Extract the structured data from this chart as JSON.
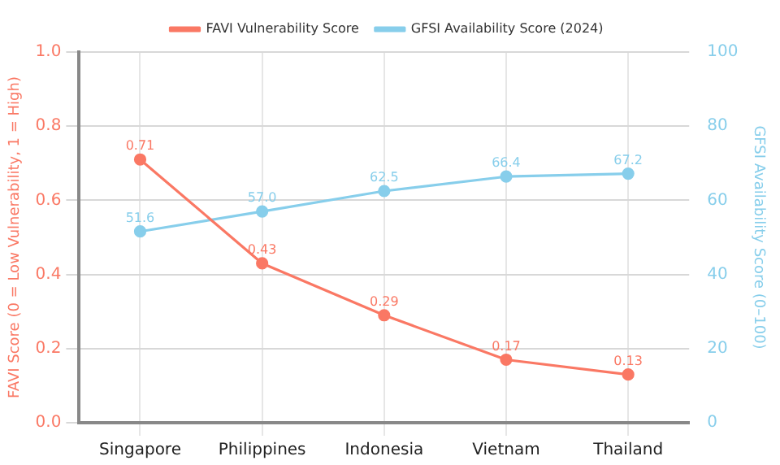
{
  "chart_data": {
    "type": "line",
    "categories": [
      "Singapore",
      "Philippines",
      "Indonesia",
      "Vietnam",
      "Thailand"
    ],
    "ylabel": "FAVI Score (0 = Low Vulnerability, 1 = High)",
    "y2label": "GFSI Availability Score (0–100)",
    "ylim": [
      0,
      1
    ],
    "yticks": [
      {
        "value": 0,
        "label": "0.0"
      },
      0.2,
      0.4,
      0.6,
      0.8,
      {
        "value": 1,
        "label": "1.0"
      }
    ],
    "y2lim": [
      0,
      100
    ],
    "y2ticks": [
      0,
      20,
      40,
      60,
      80,
      100
    ],
    "grid": true,
    "legend": "top",
    "marker": "circle",
    "line_style": "solid",
    "series": [
      {
        "name": "FAVI Vulnerability Score",
        "color": "#fa7864",
        "values": [
          0.71,
          0.43,
          0.29,
          0.17,
          0.13
        ],
        "value_labels": [
          "0.71",
          "0.43",
          "0.29",
          "0.17",
          "0.13"
        ]
      },
      {
        "name": "GFSI Availability Score (2024)",
        "color": "#87ceeb",
        "axis": "y2",
        "values": [
          51.6,
          57.0,
          62.5,
          66.4,
          67.2
        ],
        "value_labels": [
          "51.6",
          "57.0",
          "62.5",
          "66.4",
          "67.2"
        ]
      }
    ]
  }
}
